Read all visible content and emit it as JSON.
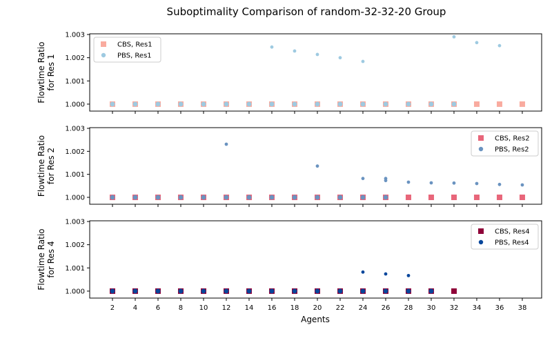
{
  "figure_title": "Suboptimality Comparison of random-32-32-20 Group",
  "xlabel": "Agents",
  "x_ticks": [
    2,
    4,
    6,
    8,
    10,
    12,
    14,
    16,
    18,
    20,
    22,
    24,
    26,
    28,
    30,
    32,
    34,
    36,
    38
  ],
  "chart_data": [
    {
      "type": "scatter",
      "ylabel_line1": "Flowtime Ratio",
      "ylabel_line2": "for Res 1",
      "ylim": [
        0.9997,
        1.00303
      ],
      "y_ticks": [
        "1.000",
        "1.001",
        "1.002",
        "1.003"
      ],
      "legend_position": "top-left",
      "series": [
        {
          "name": "CBS, Res1",
          "marker": "square",
          "color": "#f9ab9f",
          "points": [
            [
              2,
              1.0
            ],
            [
              4,
              1.0
            ],
            [
              6,
              1.0
            ],
            [
              8,
              1.0
            ],
            [
              10,
              1.0
            ],
            [
              12,
              1.0
            ],
            [
              14,
              1.0
            ],
            [
              16,
              1.0
            ],
            [
              18,
              1.0
            ],
            [
              20,
              1.0
            ],
            [
              22,
              1.0
            ],
            [
              24,
              1.0
            ],
            [
              26,
              1.0
            ],
            [
              28,
              1.0
            ],
            [
              30,
              1.0
            ],
            [
              32,
              1.0
            ],
            [
              34,
              1.0
            ],
            [
              36,
              1.0
            ],
            [
              38,
              1.0
            ]
          ]
        },
        {
          "name": "PBS, Res1",
          "marker": "circle",
          "color": "#9ecae1",
          "points": [
            [
              2,
              1.0
            ],
            [
              4,
              1.0
            ],
            [
              6,
              1.0
            ],
            [
              8,
              1.0
            ],
            [
              10,
              1.0
            ],
            [
              12,
              1.0
            ],
            [
              14,
              1.0
            ],
            [
              16,
              1.0
            ],
            [
              16,
              1.00246
            ],
            [
              18,
              1.0
            ],
            [
              18,
              1.00229
            ],
            [
              20,
              1.0
            ],
            [
              20,
              1.00214
            ],
            [
              22,
              1.0
            ],
            [
              22,
              1.002
            ],
            [
              24,
              1.0
            ],
            [
              24,
              1.00184
            ],
            [
              26,
              1.0
            ],
            [
              28,
              1.0
            ],
            [
              30,
              1.0
            ],
            [
              32,
              1.0
            ],
            [
              32,
              1.0029
            ],
            [
              34,
              1.00265
            ],
            [
              36,
              1.00252
            ]
          ]
        }
      ]
    },
    {
      "type": "scatter",
      "ylabel_line1": "Flowtime Ratio",
      "ylabel_line2": "for Res 2",
      "ylim": [
        0.9997,
        1.00303
      ],
      "y_ticks": [
        "1.000",
        "1.001",
        "1.002",
        "1.003"
      ],
      "legend_position": "top-right",
      "series": [
        {
          "name": "CBS, Res2",
          "marker": "square",
          "color": "#e8667a",
          "points": [
            [
              2,
              1.0
            ],
            [
              4,
              1.0
            ],
            [
              6,
              1.0
            ],
            [
              8,
              1.0
            ],
            [
              10,
              1.0
            ],
            [
              12,
              1.0
            ],
            [
              14,
              1.0
            ],
            [
              16,
              1.0
            ],
            [
              18,
              1.0
            ],
            [
              20,
              1.0
            ],
            [
              22,
              1.0
            ],
            [
              24,
              1.0
            ],
            [
              26,
              1.0
            ],
            [
              28,
              1.0
            ],
            [
              30,
              1.0
            ],
            [
              32,
              1.0
            ],
            [
              34,
              1.0
            ],
            [
              36,
              1.0
            ],
            [
              38,
              1.0
            ]
          ]
        },
        {
          "name": "PBS, Res2",
          "marker": "circle",
          "color": "#6a93c0",
          "points": [
            [
              2,
              1.0
            ],
            [
              4,
              1.0
            ],
            [
              6,
              1.0
            ],
            [
              8,
              1.0
            ],
            [
              10,
              1.0
            ],
            [
              12,
              1.0
            ],
            [
              12,
              1.00231
            ],
            [
              14,
              1.0
            ],
            [
              16,
              1.0
            ],
            [
              18,
              1.0
            ],
            [
              20,
              1.0
            ],
            [
              20,
              1.00136
            ],
            [
              22,
              1.0
            ],
            [
              24,
              1.0
            ],
            [
              24,
              1.00082
            ],
            [
              26,
              1.0
            ],
            [
              26,
              1.00073
            ],
            [
              26,
              1.00082
            ],
            [
              28,
              1.00066
            ],
            [
              30,
              1.00063
            ],
            [
              32,
              1.00062
            ],
            [
              34,
              1.0006
            ],
            [
              36,
              1.00056
            ],
            [
              38,
              1.00054
            ]
          ]
        }
      ]
    },
    {
      "type": "scatter",
      "ylabel_line1": "Flowtime Ratio",
      "ylabel_line2": "for Res 4",
      "ylim": [
        0.9997,
        1.00303
      ],
      "y_ticks": [
        "1.000",
        "1.001",
        "1.002",
        "1.003"
      ],
      "legend_position": "top-right",
      "series": [
        {
          "name": "CBS, Res4",
          "marker": "square",
          "color": "#8e0138",
          "points": [
            [
              2,
              1.0
            ],
            [
              4,
              1.0
            ],
            [
              6,
              1.0
            ],
            [
              8,
              1.0
            ],
            [
              10,
              1.0
            ],
            [
              12,
              1.0
            ],
            [
              14,
              1.0
            ],
            [
              16,
              1.0
            ],
            [
              18,
              1.0
            ],
            [
              20,
              1.0
            ],
            [
              22,
              1.0
            ],
            [
              24,
              1.0
            ],
            [
              26,
              1.0
            ],
            [
              28,
              1.0
            ],
            [
              30,
              1.0
            ],
            [
              32,
              1.0
            ]
          ]
        },
        {
          "name": "PBS, Res4",
          "marker": "circle",
          "color": "#08469b",
          "points": [
            [
              2,
              1.0
            ],
            [
              4,
              1.0
            ],
            [
              6,
              1.0
            ],
            [
              8,
              1.0
            ],
            [
              10,
              1.0
            ],
            [
              12,
              1.0
            ],
            [
              14,
              1.0
            ],
            [
              16,
              1.0
            ],
            [
              18,
              1.0
            ],
            [
              20,
              1.0
            ],
            [
              22,
              1.0
            ],
            [
              24,
              1.0
            ],
            [
              24,
              1.00082
            ],
            [
              26,
              1.0
            ],
            [
              26,
              1.00074
            ],
            [
              28,
              1.0
            ],
            [
              28,
              1.00067
            ],
            [
              30,
              1.0
            ]
          ]
        }
      ]
    }
  ]
}
